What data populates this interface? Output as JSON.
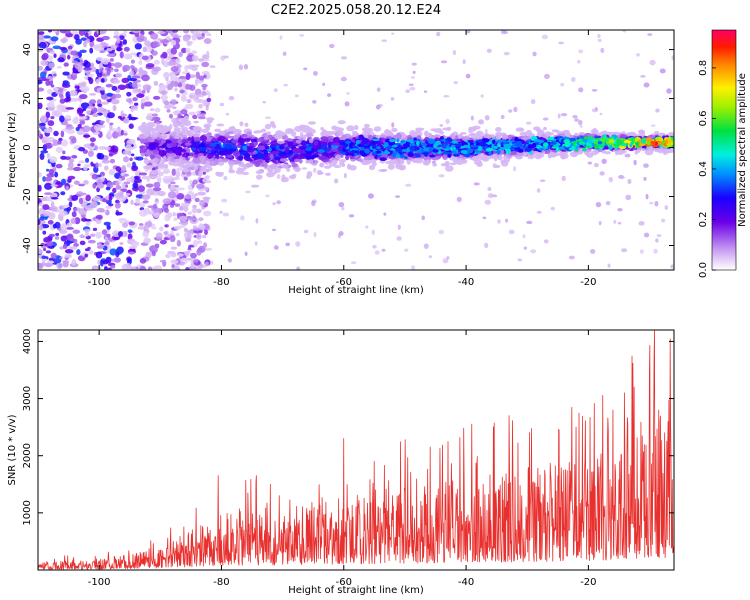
{
  "title": "C2E2.2025.058.20.12.E24",
  "chart_data": [
    {
      "type": "heatmap",
      "xlabel": "Height of straight line (km)",
      "ylabel": "Frequency (Hz)",
      "xlim": [
        -110,
        -6
      ],
      "ylim": [
        -50,
        48
      ],
      "x_ticks": [
        -100,
        -80,
        -60,
        -40,
        -20
      ],
      "y_ticks": [
        40,
        20,
        0,
        -20,
        -40
      ],
      "colorbar": {
        "label": "Normalized spectral amplitude",
        "range": [
          0,
          0.95
        ],
        "ticks": [
          0.0,
          0.2,
          0.4,
          0.6,
          0.8
        ],
        "tick_labels": [
          "0.0",
          "0.2",
          "0.4",
          "0.6",
          "0.8"
        ]
      },
      "band": {
        "center_hz": [
          {
            "x": -93,
            "y": 0
          },
          {
            "x": -85,
            "y": 0
          },
          {
            "x": -78,
            "y": 0
          },
          {
            "x": -70,
            "y": -2
          },
          {
            "x": -60,
            "y": 0
          },
          {
            "x": -50,
            "y": 0
          },
          {
            "x": -40,
            "y": 0
          },
          {
            "x": -30,
            "y": 1
          },
          {
            "x": -20,
            "y": 2
          },
          {
            "x": -8,
            "y": 2
          }
        ],
        "half_width_hz": [
          {
            "x": -93,
            "y": 8
          },
          {
            "x": -75,
            "y": 10
          },
          {
            "x": -60,
            "y": 8
          },
          {
            "x": -40,
            "y": 6
          },
          {
            "x": -20,
            "y": 4
          },
          {
            "x": -8,
            "y": 3
          }
        ],
        "peak_amplitude": [
          {
            "x": -93,
            "y": 0.25
          },
          {
            "x": -80,
            "y": 0.4
          },
          {
            "x": -60,
            "y": 0.4
          },
          {
            "x": -40,
            "y": 0.45
          },
          {
            "x": -25,
            "y": 0.5
          },
          {
            "x": -15,
            "y": 0.7
          },
          {
            "x": -9,
            "y": 0.9
          }
        ],
        "noise_region_x": [
          -110,
          -85
        ]
      },
      "grid": false
    },
    {
      "type": "line",
      "xlabel": "Height of straight line (km)",
      "ylabel": "SNR (10 * v/v)",
      "xlim": [
        -110,
        -6
      ],
      "ylim": [
        0,
        4200
      ],
      "x_ticks": [
        -100,
        -80,
        -60,
        -40,
        -20
      ],
      "y_ticks": [
        4000,
        3000,
        2000,
        1000
      ],
      "color": "#e8312f",
      "series": [
        {
          "envelope": [
            {
              "x": -110,
              "y": 150
            },
            {
              "x": -100,
              "y": 200
            },
            {
              "x": -95,
              "y": 300
            },
            {
              "x": -90,
              "y": 450
            },
            {
              "x": -85,
              "y": 700
            },
            {
              "x": -80,
              "y": 1000
            },
            {
              "x": -70,
              "y": 1100
            },
            {
              "x": -60,
              "y": 1300
            },
            {
              "x": -50,
              "y": 1450
            },
            {
              "x": -40,
              "y": 1600
            },
            {
              "x": -30,
              "y": 1800
            },
            {
              "x": -20,
              "y": 2000
            },
            {
              "x": -15,
              "y": 2200
            },
            {
              "x": -10,
              "y": 2800
            },
            {
              "x": -6,
              "y": 2600
            }
          ],
          "peaks": [
            {
              "x": -80.5,
              "y": 1650
            },
            {
              "x": -72,
              "y": 1500
            },
            {
              "x": -60,
              "y": 2300
            },
            {
              "x": -55,
              "y": 1900
            },
            {
              "x": -33,
              "y": 2700
            },
            {
              "x": -22,
              "y": 2500
            },
            {
              "x": -16,
              "y": 2800
            },
            {
              "x": -12.5,
              "y": 3200
            },
            {
              "x": -10,
              "y": 3450
            },
            {
              "x": -9.2,
              "y": 4200
            },
            {
              "x": -8.5,
              "y": 2800
            }
          ]
        }
      ],
      "grid": false
    }
  ]
}
